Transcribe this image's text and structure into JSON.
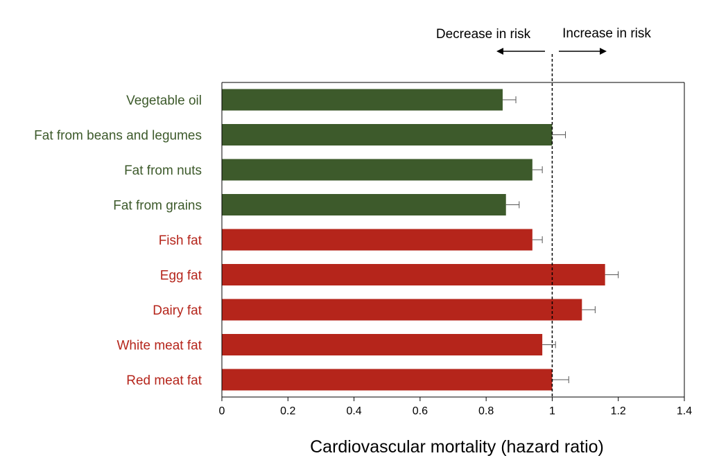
{
  "chart_data": {
    "type": "bar",
    "orientation": "horizontal",
    "categories": [
      "Vegetable oil",
      "Fat from beans and legumes",
      "Fat from nuts",
      "Fat from grains",
      "Fish fat",
      "Egg fat",
      "Dairy fat",
      "White meat fat",
      "Red meat fat"
    ],
    "values": [
      0.85,
      1.0,
      0.94,
      0.86,
      0.94,
      1.16,
      1.09,
      0.97,
      1.0
    ],
    "error_upper": [
      0.89,
      1.04,
      0.97,
      0.9,
      0.97,
      1.2,
      1.13,
      1.01,
      1.05
    ],
    "bar_colors": [
      "#3d5a2b",
      "#3d5a2b",
      "#3d5a2b",
      "#3d5a2b",
      "#b5251b",
      "#b5251b",
      "#b5251b",
      "#b5251b",
      "#b5251b"
    ],
    "xlabel": "Cardiovascular mortality (hazard ratio)",
    "xlim": [
      0,
      1.4
    ],
    "xticks": [
      "0",
      "0.2",
      "0.4",
      "0.6",
      "0.8",
      "1",
      "1.2",
      "1.4"
    ],
    "reference_line": 1,
    "annotations": {
      "decrease": "Decrease in risk",
      "increase": "Increase in risk"
    },
    "colors": {
      "plant": "#3d5a2b",
      "animal": "#b5251b"
    },
    "grid": false
  }
}
